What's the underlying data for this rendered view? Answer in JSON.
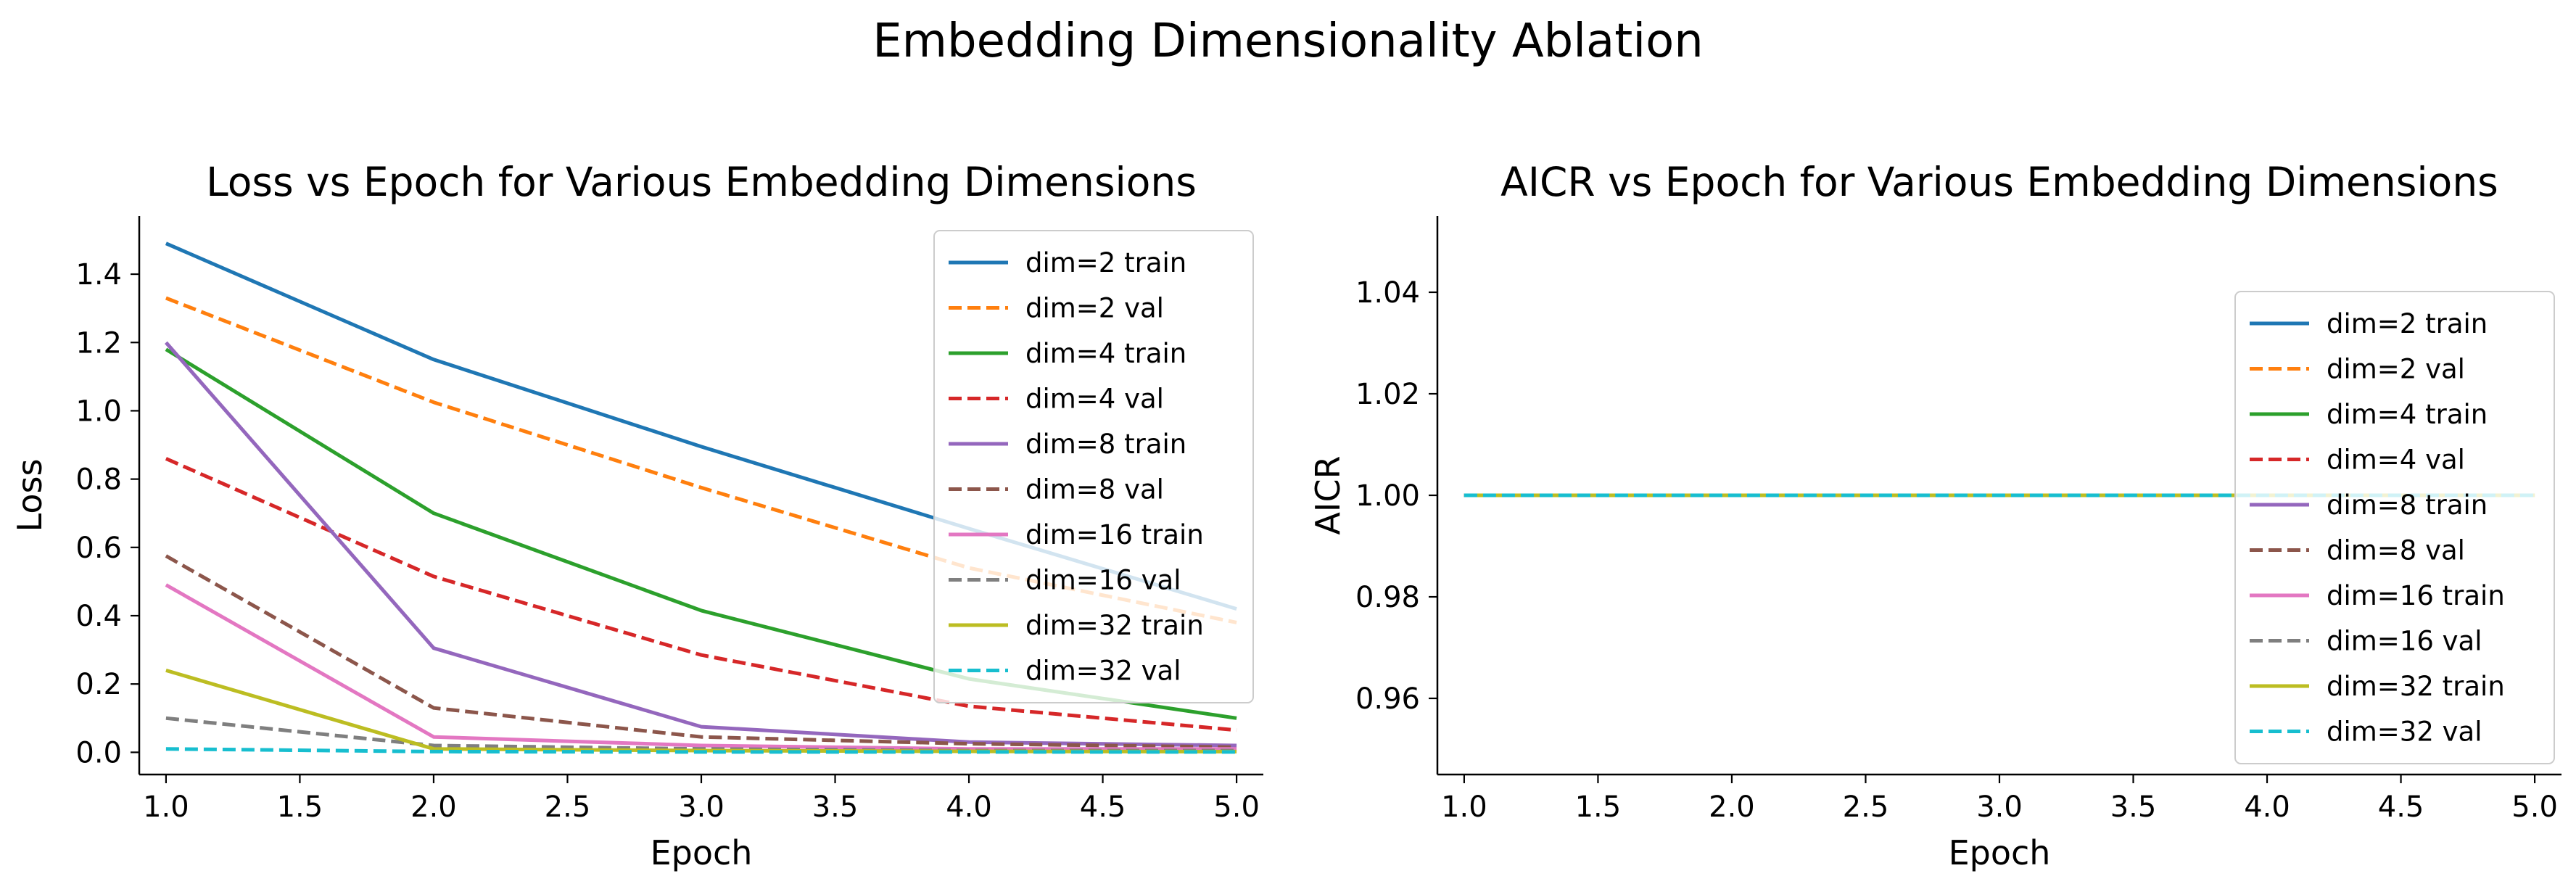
{
  "figure_title": "Embedding Dimensionality Ablation",
  "chart_data": [
    {
      "type": "line",
      "title": "Loss vs Epoch for Various Embedding Dimensions",
      "xlabel": "Epoch",
      "ylabel": "Loss",
      "xlim": [
        0.9,
        5.1
      ],
      "ylim": [
        -0.065,
        1.57
      ],
      "xticks": [
        1.0,
        1.5,
        2.0,
        2.5,
        3.0,
        3.5,
        4.0,
        4.5,
        5.0
      ],
      "xtick_labels": [
        "1.0",
        "1.5",
        "2.0",
        "2.5",
        "3.0",
        "3.5",
        "4.0",
        "4.5",
        "5.0"
      ],
      "yticks": [
        0.0,
        0.2,
        0.4,
        0.6,
        0.8,
        1.0,
        1.2,
        1.4
      ],
      "ytick_labels": [
        "0.0",
        "0.2",
        "0.4",
        "0.6",
        "0.8",
        "1.0",
        "1.2",
        "1.4"
      ],
      "grid": false,
      "legend_position": "upper right",
      "x": [
        1,
        2,
        3,
        4,
        5
      ],
      "series": [
        {
          "name": "dim=2 train",
          "color": "#1f77b4",
          "dash": "solid",
          "values": [
            1.49,
            1.15,
            0.895,
            0.655,
            0.42
          ]
        },
        {
          "name": "dim=2 val",
          "color": "#ff7f0e",
          "dash": "dashed",
          "values": [
            1.33,
            1.025,
            0.775,
            0.54,
            0.38
          ]
        },
        {
          "name": "dim=4 train",
          "color": "#2ca02c",
          "dash": "solid",
          "values": [
            1.18,
            0.7,
            0.415,
            0.215,
            0.1
          ]
        },
        {
          "name": "dim=4 val",
          "color": "#d62728",
          "dash": "dashed",
          "values": [
            0.86,
            0.515,
            0.285,
            0.135,
            0.065
          ]
        },
        {
          "name": "dim=8 train",
          "color": "#9467bd",
          "dash": "solid",
          "values": [
            1.2,
            0.305,
            0.075,
            0.03,
            0.02
          ]
        },
        {
          "name": "dim=8 val",
          "color": "#8c564b",
          "dash": "dashed",
          "values": [
            0.575,
            0.13,
            0.045,
            0.025,
            0.015
          ]
        },
        {
          "name": "dim=16 train",
          "color": "#e377c2",
          "dash": "solid",
          "values": [
            0.49,
            0.045,
            0.02,
            0.01,
            0.01
          ]
        },
        {
          "name": "dim=16 val",
          "color": "#7f7f7f",
          "dash": "dashed",
          "values": [
            0.1,
            0.02,
            0.01,
            0.005,
            0.005
          ]
        },
        {
          "name": "dim=32 train",
          "color": "#bcbd22",
          "dash": "solid",
          "values": [
            0.24,
            0.01,
            0.005,
            0.003,
            0.002
          ]
        },
        {
          "name": "dim=32 val",
          "color": "#17becf",
          "dash": "dashed",
          "values": [
            0.01,
            0.002,
            0.001,
            0.001,
            0.001
          ]
        }
      ]
    },
    {
      "type": "line",
      "title": "AICR vs Epoch for Various Embedding Dimensions",
      "xlabel": "Epoch",
      "ylabel": "AICR",
      "xlim": [
        0.9,
        5.1
      ],
      "ylim": [
        0.945,
        1.055
      ],
      "xticks": [
        1.0,
        1.5,
        2.0,
        2.5,
        3.0,
        3.5,
        4.0,
        4.5,
        5.0
      ],
      "xtick_labels": [
        "1.0",
        "1.5",
        "2.0",
        "2.5",
        "3.0",
        "3.5",
        "4.0",
        "4.5",
        "5.0"
      ],
      "yticks": [
        0.96,
        0.98,
        1.0,
        1.02,
        1.04
      ],
      "ytick_labels": [
        "0.96",
        "0.98",
        "1.00",
        "1.02",
        "1.04"
      ],
      "grid": false,
      "legend_position": "center right",
      "x": [
        1,
        2,
        3,
        4,
        5
      ],
      "series": [
        {
          "name": "dim=2 train",
          "color": "#1f77b4",
          "dash": "solid",
          "values": [
            1.0,
            1.0,
            1.0,
            1.0,
            1.0
          ]
        },
        {
          "name": "dim=2 val",
          "color": "#ff7f0e",
          "dash": "dashed",
          "values": [
            1.0,
            1.0,
            1.0,
            1.0,
            1.0
          ]
        },
        {
          "name": "dim=4 train",
          "color": "#2ca02c",
          "dash": "solid",
          "values": [
            1.0,
            1.0,
            1.0,
            1.0,
            1.0
          ]
        },
        {
          "name": "dim=4 val",
          "color": "#d62728",
          "dash": "dashed",
          "values": [
            1.0,
            1.0,
            1.0,
            1.0,
            1.0
          ]
        },
        {
          "name": "dim=8 train",
          "color": "#9467bd",
          "dash": "solid",
          "values": [
            1.0,
            1.0,
            1.0,
            1.0,
            1.0
          ]
        },
        {
          "name": "dim=8 val",
          "color": "#8c564b",
          "dash": "dashed",
          "values": [
            1.0,
            1.0,
            1.0,
            1.0,
            1.0
          ]
        },
        {
          "name": "dim=16 train",
          "color": "#e377c2",
          "dash": "solid",
          "values": [
            1.0,
            1.0,
            1.0,
            1.0,
            1.0
          ]
        },
        {
          "name": "dim=16 val",
          "color": "#7f7f7f",
          "dash": "dashed",
          "values": [
            1.0,
            1.0,
            1.0,
            1.0,
            1.0
          ]
        },
        {
          "name": "dim=32 train",
          "color": "#bcbd22",
          "dash": "solid",
          "values": [
            1.0,
            1.0,
            1.0,
            1.0,
            1.0
          ]
        },
        {
          "name": "dim=32 val",
          "color": "#17becf",
          "dash": "dashed",
          "values": [
            1.0,
            1.0,
            1.0,
            1.0,
            1.0
          ]
        }
      ]
    }
  ]
}
